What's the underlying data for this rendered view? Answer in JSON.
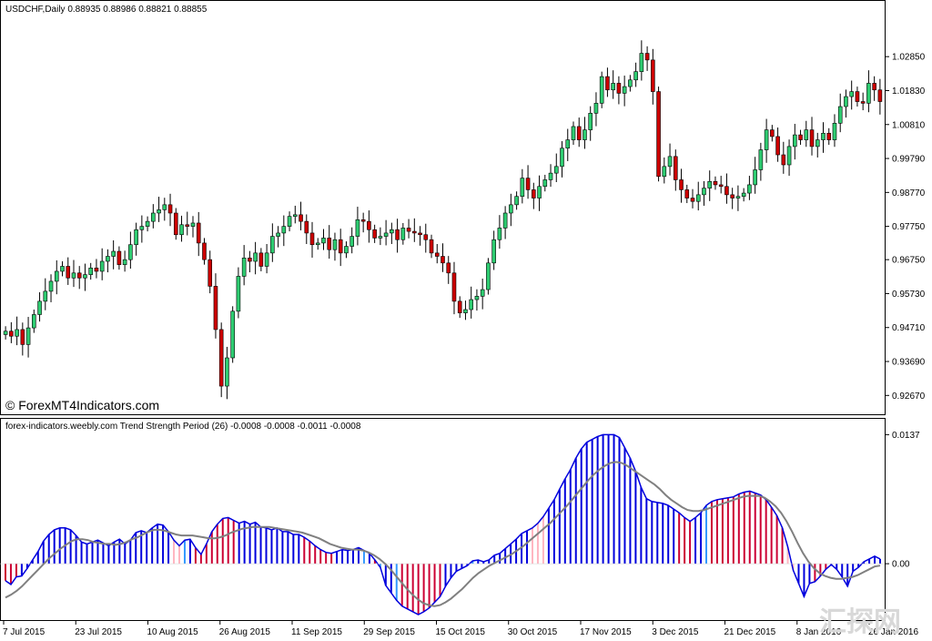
{
  "main_header": "USDCHF,Daily  0.88935 0.88986 0.88821 0.88855",
  "copyright": "© ForexMT4Indicators.com",
  "indicator_header": "forex-indicators.weebly.com Trend Strength Period (26) -0.0008 -0.0008 -0.0011 -0.0008",
  "watermark": "汇探网",
  "colors": {
    "bull": "#2ecc71",
    "bear": "#cc0000",
    "blue": "#0000dd",
    "red": "#cc0033",
    "pink": "#ffb6c1",
    "lightblue": "#3399ff",
    "signal": "#808080"
  },
  "chart_data": [
    {
      "type": "candlestick",
      "y_ticks": [
        "1.02850",
        "1.01830",
        "1.00810",
        "0.99790",
        "0.98770",
        "0.97750",
        "0.96750",
        "0.95730",
        "0.94710",
        "0.93690",
        "0.92670"
      ],
      "x_ticks": [
        "7 Jul 2015",
        "23 Jul 2015",
        "10 Aug 2015",
        "26 Aug 2015",
        "11 Sep 2015",
        "29 Sep 2015",
        "15 Oct 2015",
        "30 Oct 2015",
        "17 Nov 2015",
        "3 Dec 2015",
        "21 Dec 2015",
        "8 Jan 2016",
        "26 Jan 2016"
      ],
      "ylim": [
        0.9235,
        1.0395
      ],
      "close_path": [
        0.946,
        0.9445,
        0.9465,
        0.942,
        0.947,
        0.951,
        0.955,
        0.958,
        0.961,
        0.964,
        0.9655,
        0.962,
        0.9635,
        0.962,
        0.963,
        0.965,
        0.964,
        0.967,
        0.9685,
        0.97,
        0.966,
        0.9675,
        0.972,
        0.9765,
        0.9775,
        0.979,
        0.9815,
        0.9825,
        0.984,
        0.9815,
        0.975,
        0.978,
        0.9775,
        0.9785,
        0.9725,
        0.9675,
        0.9595,
        0.9465,
        0.9295,
        0.938,
        0.952,
        0.9625,
        0.968,
        0.967,
        0.9695,
        0.9655,
        0.9695,
        0.9745,
        0.9755,
        0.9775,
        0.9805,
        0.981,
        0.979,
        0.9755,
        0.972,
        0.9725,
        0.974,
        0.9705,
        0.9735,
        0.9695,
        0.9715,
        0.9745,
        0.9795,
        0.979,
        0.9765,
        0.974,
        0.9745,
        0.9755,
        0.9765,
        0.9735,
        0.977,
        0.976,
        0.9755,
        0.975,
        0.9735,
        0.9695,
        0.9685,
        0.9665,
        0.9635,
        0.955,
        0.9515,
        0.9525,
        0.9555,
        0.9565,
        0.9585,
        0.9665,
        0.9735,
        0.977,
        0.9815,
        0.984,
        0.9865,
        0.992,
        0.9885,
        0.986,
        0.9895,
        0.9915,
        0.9935,
        0.9955,
        1.001,
        1.0035,
        1.0075,
        1.0035,
        1.0065,
        1.0115,
        1.0145,
        1.0225,
        1.0185,
        1.0205,
        1.0175,
        1.0195,
        1.0215,
        1.024,
        1.0295,
        1.0275,
        1.018,
        0.9925,
        0.9955,
        0.9985,
        0.9915,
        0.9885,
        0.986,
        0.985,
        0.987,
        0.989,
        0.991,
        0.99,
        0.9895,
        0.987,
        0.986,
        0.9865,
        0.9875,
        0.99,
        0.9945,
        1.0005,
        1.0065,
        1.0045,
        0.999,
        0.996,
        1.0015,
        1.005,
        1.0035,
        1.0065,
        1.0015,
        1.0035,
        1.0055,
        1.0035,
        1.0085,
        1.0135,
        1.0165,
        1.018,
        1.015,
        1.0145,
        1.0205,
        1.0185,
        1.015
      ]
    },
    {
      "type": "histogram",
      "title": "Trend Strength Period (26)",
      "y_ticks": [
        "0.0137",
        "0.00"
      ],
      "ylim": [
        -0.0055,
        0.0148
      ],
      "histogram": [
        -0.0018,
        -0.0022,
        -0.0014,
        -0.0013,
        -0.0005,
        0.0004,
        0.0013,
        0.0024,
        0.0031,
        0.0036,
        0.0038,
        0.0038,
        0.0036,
        0.003,
        0.0023,
        0.0021,
        0.0023,
        0.0025,
        0.0022,
        0.0019,
        0.0023,
        0.0026,
        0.0021,
        0.0025,
        0.0033,
        0.0035,
        0.0033,
        0.0038,
        0.0042,
        0.0041,
        0.0034,
        0.0025,
        0.0019,
        0.0025,
        0.0026,
        0.0017,
        0.001,
        0.0021,
        0.0034,
        0.0042,
        0.0048,
        0.0049,
        0.0046,
        0.0043,
        0.0045,
        0.0042,
        0.0044,
        0.0039,
        0.0038,
        0.0036,
        0.0038,
        0.0034,
        0.0034,
        0.0031,
        0.0031,
        0.0028,
        0.0024,
        0.0019,
        0.0015,
        0.0012,
        0.0011,
        0.0013,
        0.0015,
        0.0014,
        0.0015,
        0.0017,
        0.0014,
        0.0011,
        0.0004,
        -0.0004,
        -0.0023,
        -0.0031,
        -0.0039,
        -0.0045,
        -0.0048,
        -0.0051,
        -0.0054,
        -0.0051,
        -0.0047,
        -0.0041,
        -0.0035,
        -0.0024,
        -0.0015,
        -0.0008,
        -0.0005,
        -0.0002,
        0.0003,
        0.0004,
        0.0002,
        0.0004,
        0.0009,
        0.0011,
        0.0016,
        0.0021,
        0.0026,
        0.0032,
        0.0035,
        0.0038,
        0.0043,
        0.005,
        0.0059,
        0.0068,
        0.0079,
        0.009,
        0.01,
        0.0112,
        0.0122,
        0.0129,
        0.0132,
        0.0135,
        0.0137,
        0.0137,
        0.0137,
        0.0134,
        0.0123,
        0.0112,
        0.0098,
        0.0081,
        0.0069,
        0.0066,
        0.0065,
        0.0064,
        0.0062,
        0.0058,
        0.0054,
        0.0049,
        0.0045,
        0.0049,
        0.0054,
        0.0062,
        0.0066,
        0.0068,
        0.0069,
        0.007,
        0.0071,
        0.0074,
        0.0076,
        0.0077,
        0.0075,
        0.0073,
        0.0068,
        0.006,
        0.0051,
        0.0038,
        0.0018,
        -0.0007,
        -0.0021,
        -0.0035,
        -0.0021,
        -0.0019,
        -0.0013,
        -0.0006,
        -0.0001,
        -0.0006,
        -0.0014,
        -0.0024,
        -0.0008,
        -0.0004,
        0.0002,
        0.0005,
        0.0008,
        0.0005
      ],
      "colors": [
        "red",
        "red",
        "red",
        "blue",
        "blue",
        "blue",
        "blue",
        "blue",
        "blue",
        "blue",
        "blue",
        "blue",
        "blue",
        "blue",
        "blue",
        "blue",
        "blue",
        "blue",
        "blue",
        "blue",
        "blue",
        "blue",
        "blue",
        "blue",
        "blue",
        "blue",
        "blue",
        "blue",
        "blue",
        "blue",
        "blue",
        "pink",
        "pink",
        "lightblue",
        "blue",
        "red",
        "red",
        "red",
        "red",
        "red",
        "red",
        "red",
        "red",
        "blue",
        "blue",
        "blue",
        "blue",
        "blue",
        "blue",
        "blue",
        "blue",
        "blue",
        "blue",
        "blue",
        "blue",
        "red",
        "red",
        "red",
        "red",
        "red",
        "red",
        "blue",
        "blue",
        "blue",
        "blue",
        "blue",
        "lightblue",
        "blue",
        "red",
        "lightblue",
        "blue",
        "blue",
        "lightblue",
        "red",
        "red",
        "red",
        "red",
        "red",
        "red",
        "red",
        "red",
        "blue",
        "blue",
        "blue",
        "blue",
        "blue",
        "lightblue",
        "blue",
        "blue",
        "blue",
        "blue",
        "blue",
        "blue",
        "blue",
        "blue",
        "blue",
        "blue",
        "pink",
        "pink",
        "pink",
        "blue",
        "blue",
        "blue",
        "blue",
        "blue",
        "blue",
        "blue",
        "blue",
        "blue",
        "blue",
        "blue",
        "blue",
        "blue",
        "blue",
        "blue",
        "blue",
        "blue",
        "blue",
        "blue",
        "blue",
        "blue",
        "blue",
        "blue",
        "blue",
        "red",
        "red",
        "red",
        "blue",
        "blue",
        "lightblue",
        "red",
        "red",
        "red",
        "red",
        "red",
        "red",
        "red",
        "red",
        "red",
        "red",
        "red",
        "red",
        "red",
        "red",
        "pink",
        "pink",
        "blue",
        "blue",
        "blue",
        "red",
        "red",
        "red",
        "blue",
        "blue",
        "blue",
        "blue",
        "blue",
        "blue",
        "blue",
        "blue",
        "blue",
        "blue",
        "blue",
        "blue",
        "blue",
        "blue"
      ],
      "signal": [
        -0.0036,
        -0.0033,
        -0.0029,
        -0.0024,
        -0.0018,
        -0.0012,
        -0.0006,
        0.0,
        0.0006,
        0.0011,
        0.0016,
        0.002,
        0.0024,
        0.0026,
        0.0026,
        0.0025,
        0.0023,
        0.0022,
        0.0021,
        0.0021,
        0.002,
        0.0021,
        0.0023,
        0.0026,
        0.0028,
        0.0031,
        0.0034,
        0.0036,
        0.0036,
        0.0035,
        0.0033,
        0.0031,
        0.003,
        0.003,
        0.003,
        0.0029,
        0.0028,
        0.0027,
        0.0027,
        0.0028,
        0.003,
        0.0033,
        0.0035,
        0.0037,
        0.0038,
        0.0039,
        0.0039,
        0.0039,
        0.0039,
        0.0038,
        0.0037,
        0.0036,
        0.0035,
        0.0034,
        0.0033,
        0.0031,
        0.0029,
        0.0027,
        0.0024,
        0.0021,
        0.0019,
        0.0017,
        0.0016,
        0.0015,
        0.0015,
        0.0014,
        0.0012,
        0.0009,
        0.0005,
        0.0,
        -0.0006,
        -0.0013,
        -0.002,
        -0.0027,
        -0.0033,
        -0.0038,
        -0.0042,
        -0.0044,
        -0.0045,
        -0.0044,
        -0.0041,
        -0.0037,
        -0.0032,
        -0.0027,
        -0.0021,
        -0.0015,
        -0.001,
        -0.0006,
        -0.0002,
        0.0001,
        0.0004,
        0.0007,
        0.001,
        0.0014,
        0.0018,
        0.0023,
        0.0028,
        0.0033,
        0.0038,
        0.0043,
        0.0049,
        0.0055,
        0.0061,
        0.0068,
        0.0075,
        0.0082,
        0.0089,
        0.0095,
        0.01,
        0.0104,
        0.0107,
        0.0108,
        0.0107,
        0.0104,
        0.01,
        0.0096,
        0.0092,
        0.0088,
        0.0084,
        0.0079,
        0.0073,
        0.0068,
        0.0064,
        0.006,
        0.0057,
        0.0056,
        0.0056,
        0.0057,
        0.0059,
        0.0061,
        0.0063,
        0.0065,
        0.0067,
        0.0069,
        0.0071,
        0.0072,
        0.0072,
        0.0072,
        0.007,
        0.0066,
        0.0061,
        0.0054,
        0.0045,
        0.0034,
        0.0022,
        0.0011,
        0.0002,
        -0.0005,
        -0.001,
        -0.0013,
        -0.0015,
        -0.0016,
        -0.0016,
        -0.0015,
        -0.0014,
        -0.0012,
        -0.0009,
        -0.0006,
        -0.0003,
        -0.0002
      ]
    }
  ]
}
